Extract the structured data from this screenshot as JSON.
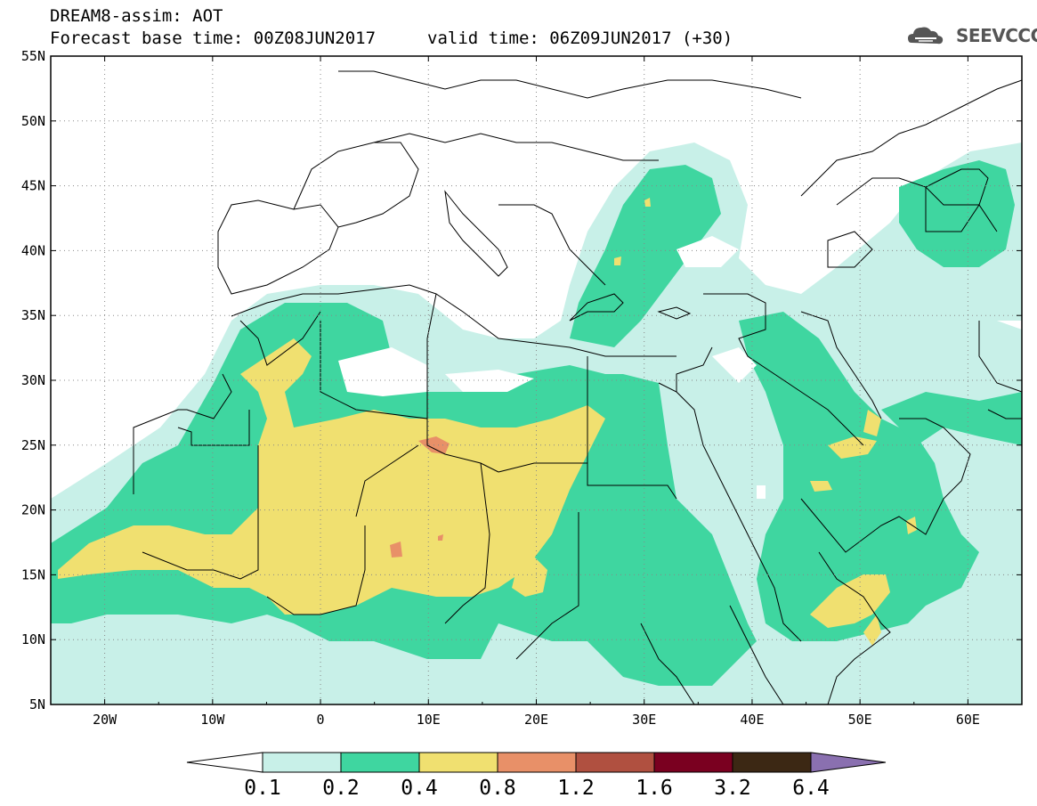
{
  "title": {
    "line1": "DREAM8-assim: AOT",
    "line2": "Forecast base time: 00Z08JUN2017",
    "line3": "valid time: 06Z09JUN2017 (+30)"
  },
  "logo": {
    "icon": "cloud-icon",
    "text": "SEEVCCC"
  },
  "axes": {
    "lat_labels": [
      "55N",
      "50N",
      "45N",
      "40N",
      "35N",
      "30N",
      "25N",
      "20N",
      "15N",
      "10N",
      "5N"
    ],
    "lon_labels": [
      "20W",
      "10W",
      "0",
      "10E",
      "20E",
      "30E",
      "40E",
      "50E",
      "60E"
    ],
    "lat_range": [
      5,
      55
    ],
    "lon_range": [
      -25,
      65
    ]
  },
  "colorbar": {
    "labels": [
      "0.1",
      "0.2",
      "0.4",
      "0.8",
      "1.2",
      "1.6",
      "3.2",
      "6.4"
    ],
    "colors": [
      "#c8f0e8",
      "#3fd6a0",
      "#f0e070",
      "#e89068",
      "#b05040",
      "#7a0020",
      "#3c2814",
      "#8a70b0"
    ]
  },
  "map_colors": {
    "land_bg": "#ffffff",
    "level_0_1": "#c8f0e8",
    "level_0_2": "#3fd6a0",
    "level_0_4": "#f0e070",
    "level_0_8": "#e89068"
  }
}
